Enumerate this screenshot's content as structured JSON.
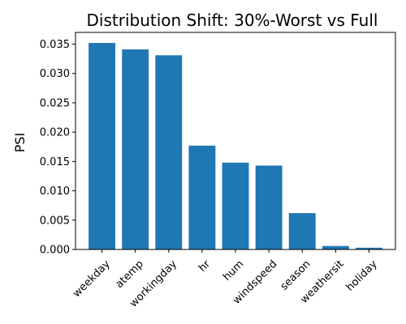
{
  "chart_data": {
    "type": "bar",
    "title": "Distribution Shift: 30%-Worst vs Full",
    "xlabel": "",
    "ylabel": "PSI",
    "categories": [
      "weekday",
      "atemp",
      "workingday",
      "hr",
      "hum",
      "windspeed",
      "season",
      "weathersit",
      "holiday"
    ],
    "values": [
      0.0352,
      0.0341,
      0.0331,
      0.0177,
      0.0148,
      0.0143,
      0.0062,
      0.0006,
      0.0003
    ],
    "ylim": [
      0,
      0.037
    ],
    "yticks": [
      0.0,
      0.005,
      0.01,
      0.015,
      0.02,
      0.025,
      0.03,
      0.035
    ],
    "ytick_labels": [
      "0.000",
      "0.005",
      "0.010",
      "0.015",
      "0.020",
      "0.025",
      "0.030",
      "0.035"
    ],
    "x_tick_rotation": 45,
    "bar_color": "#1f77b4",
    "grid": false,
    "legend": "none"
  }
}
